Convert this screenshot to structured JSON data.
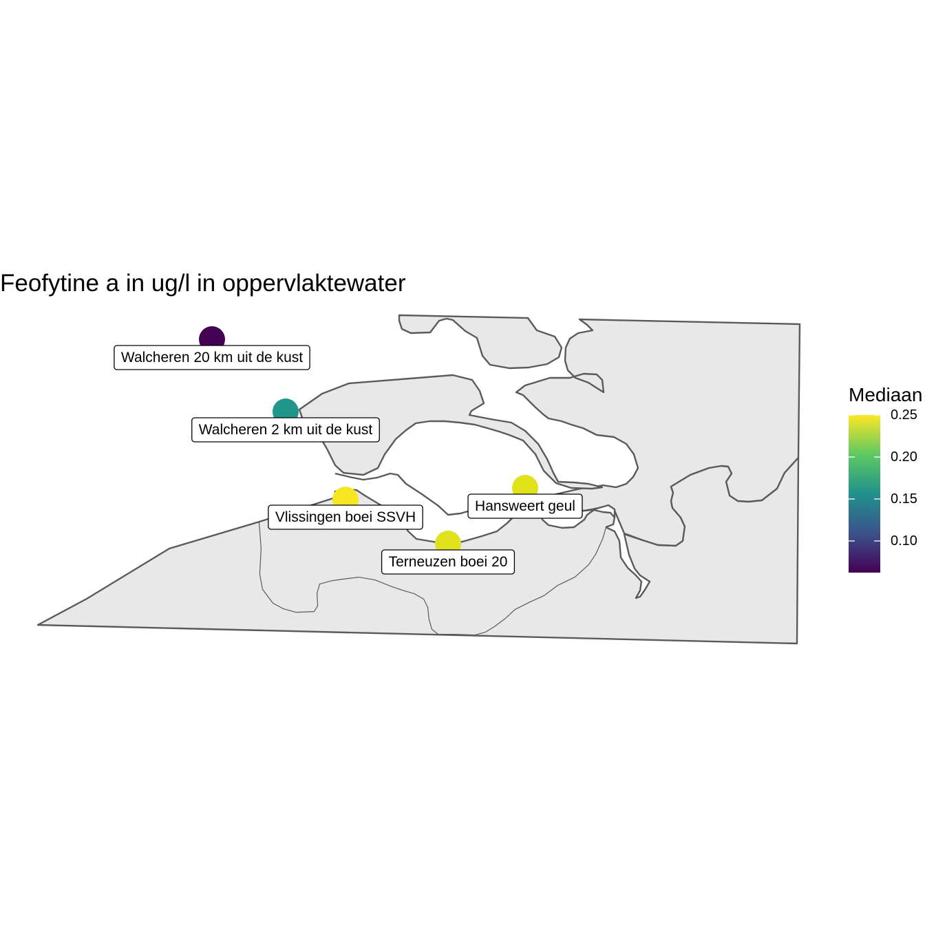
{
  "title": "Feofytine a in ug/l in oppervlaktewater",
  "legend": {
    "title": "Mediaan",
    "ticks": [
      "0.25",
      "0.20",
      "0.15",
      "0.10"
    ],
    "colormap": "viridis",
    "colors": [
      "#440154",
      "#3b528b",
      "#21918c",
      "#5ec962",
      "#fde725"
    ]
  },
  "stations": [
    {
      "name": "Walcheren 20 km uit de kust",
      "color": "#440154"
    },
    {
      "name": "Walcheren 2 km uit de kust",
      "color": "#21968b"
    },
    {
      "name": "Vlissingen boei SSVH",
      "color": "#f6e620"
    },
    {
      "name": "Hansweert geul",
      "color": "#e1e21b"
    },
    {
      "name": "Terneuzen boei 20",
      "color": "#dfe21d"
    }
  ]
}
